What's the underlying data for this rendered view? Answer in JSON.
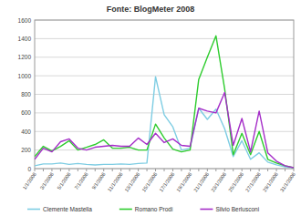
{
  "chart_data": {
    "type": "line",
    "title": "Fonte: BlogMeter 2008",
    "categories": [
      "1/1/2008",
      null,
      "3/1/2008",
      null,
      "5/1/2008",
      null,
      "7/1/2008",
      null,
      "9/1/2008",
      null,
      "11/1/2008",
      null,
      "13/1/2008",
      null,
      "15/1/2008",
      null,
      "17/1/2008",
      null,
      "19/1/2008",
      null,
      "21/1/2008",
      null,
      "23/1/2008",
      null,
      "25/1/2008",
      null,
      "27/1/2008",
      null,
      "29/1/2008",
      null,
      "31/1/2008"
    ],
    "series": [
      {
        "name": "Clemente Mastella",
        "color": "#7ecde3",
        "values": [
          30,
          50,
          50,
          60,
          45,
          55,
          45,
          40,
          45,
          45,
          50,
          45,
          55,
          60,
          990,
          580,
          450,
          200,
          220,
          650,
          530,
          640,
          430,
          130,
          300,
          100,
          170,
          70,
          40,
          20,
          10
        ]
      },
      {
        "name": "Romano Prodi",
        "color": "#2ecc2e",
        "values": [
          130,
          240,
          190,
          240,
          300,
          200,
          230,
          260,
          310,
          220,
          220,
          230,
          200,
          200,
          480,
          330,
          210,
          180,
          200,
          960,
          1200,
          1430,
          860,
          150,
          380,
          150,
          400,
          100,
          60,
          30,
          10
        ]
      },
      {
        "name": "Silvio Berlusconi",
        "color": "#a52ec8",
        "values": [
          100,
          220,
          180,
          290,
          320,
          220,
          200,
          230,
          240,
          250,
          240,
          240,
          330,
          260,
          380,
          280,
          320,
          250,
          240,
          650,
          620,
          600,
          820,
          250,
          540,
          180,
          620,
          170,
          80,
          30,
          10
        ]
      }
    ],
    "ylim": [
      0,
      1600
    ],
    "yticks": [
      0,
      200,
      400,
      600,
      800,
      1000,
      1200,
      1400,
      1600
    ],
    "grid": true,
    "legend": "bottom"
  }
}
